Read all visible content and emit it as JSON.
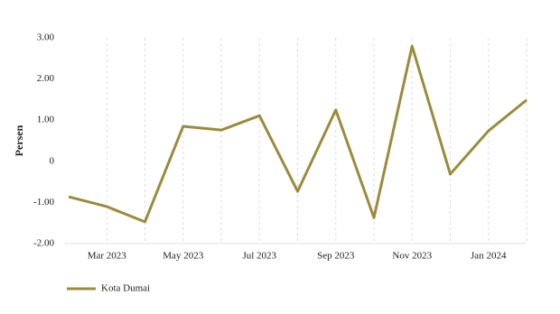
{
  "chart_data": {
    "type": "line",
    "y_label": "Persen",
    "categories": [
      null,
      "Mar 2023",
      null,
      "May 2023",
      null,
      "Jul 2023",
      null,
      "Sep 2023",
      null,
      "Nov 2023",
      null,
      "Jan 2024",
      null
    ],
    "series": [
      {
        "name": "Kota Dumai",
        "color": "#9c8b3b",
        "values": [
          -0.86,
          -1.1,
          -1.47,
          0.85,
          0.76,
          1.11,
          -0.73,
          1.25,
          -1.37,
          2.8,
          -0.31,
          0.74,
          1.49
        ]
      }
    ],
    "ylim": [
      -2,
      3
    ],
    "yticks": [
      {
        "value": -2,
        "label": "-2.00"
      },
      {
        "value": -1,
        "label": "-1.00"
      },
      0,
      {
        "value": 1,
        "label": "1.00"
      },
      {
        "value": 2,
        "label": "2.00"
      },
      {
        "value": 3,
        "label": "3.00"
      }
    ],
    "legend": "bottom-left"
  }
}
